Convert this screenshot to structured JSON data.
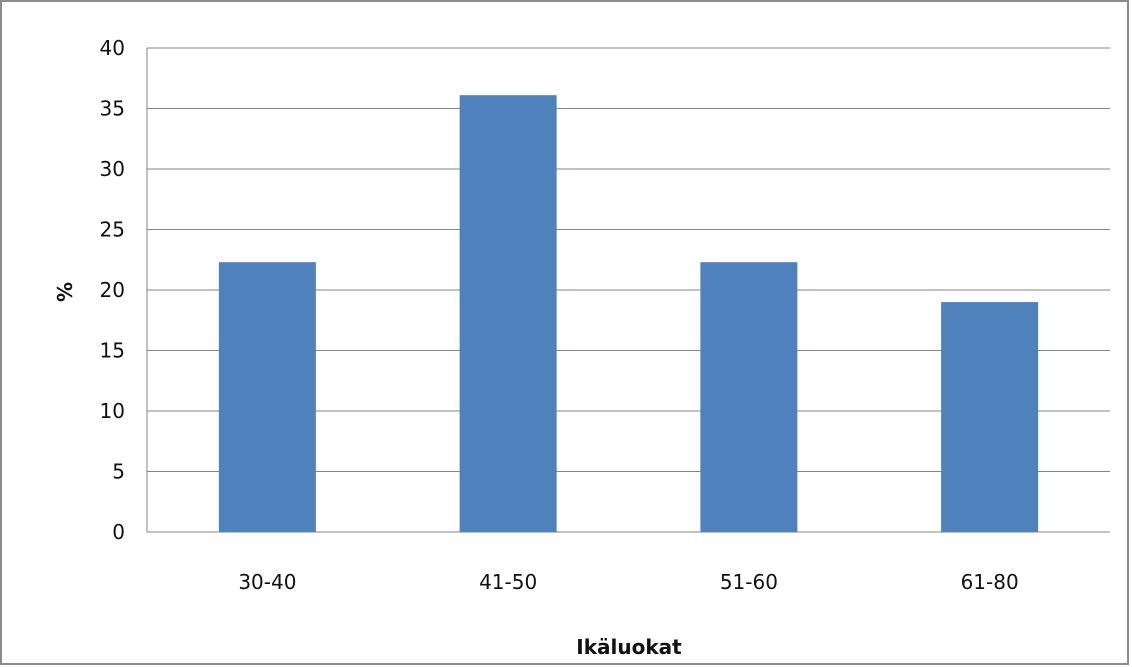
{
  "chart_data": {
    "type": "bar",
    "categories": [
      "30-40",
      "41-50",
      "51-60",
      "61-80"
    ],
    "values": [
      22.3,
      36.1,
      22.3,
      19.0
    ],
    "title": "",
    "xlabel": "Ikäluokat",
    "ylabel": "%",
    "ylim": [
      0,
      40
    ],
    "yticks": [
      0,
      5,
      10,
      15,
      20,
      25,
      30,
      35,
      40
    ],
    "grid": true,
    "legend": "none",
    "bar_color": "#4f81bd",
    "grid_color": "#868686"
  }
}
